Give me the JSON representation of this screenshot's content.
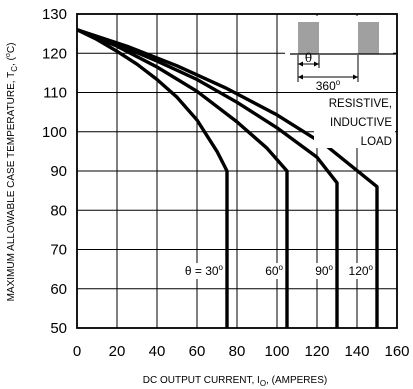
{
  "chart_data": {
    "type": "line",
    "xlabel": "DC OUTPUT CURRENT, I",
    "xlabel_sub": "O",
    "xlabel_tail": ", (AMPERES)",
    "ylabel": "MAXIMUM ALLOWABLE CASE TEMPERATURE, T",
    "ylabel_sub": "C",
    "ylabel_tail": ", (",
    "ylabel_deg": "o",
    "ylabel_end": "C)",
    "xlim": [
      0,
      160
    ],
    "ylim": [
      50,
      130
    ],
    "xticks": [
      "0",
      "20",
      "40",
      "60",
      "80",
      "100",
      "120",
      "140",
      "160"
    ],
    "yticks": [
      "50",
      "60",
      "70",
      "80",
      "90",
      "100",
      "110",
      "120",
      "130"
    ],
    "grid": true,
    "series": [
      {
        "name": "θ = 30",
        "sup": "o",
        "x": [
          0,
          10,
          20,
          30,
          40,
          50,
          60,
          70,
          75,
          75
        ],
        "y": [
          126,
          123.5,
          120.5,
          117.2,
          113.3,
          108.8,
          103.0,
          95.0,
          90,
          50
        ]
      },
      {
        "name": "60",
        "sup": "o",
        "x": [
          0,
          20,
          40,
          60,
          80,
          95,
          105,
          105
        ],
        "y": [
          126,
          121.8,
          116.5,
          110.3,
          102.5,
          95.8,
          90,
          50
        ]
      },
      {
        "name": "90",
        "sup": "o",
        "x": [
          0,
          20,
          40,
          60,
          80,
          100,
          120,
          130,
          130
        ],
        "y": [
          126,
          122.3,
          118.0,
          113.3,
          107.5,
          101.0,
          93.5,
          87,
          50
        ]
      },
      {
        "name": "120",
        "sup": "o",
        "x": [
          0,
          25,
          50,
          75,
          100,
          125,
          150,
          150
        ],
        "y": [
          126,
          121.8,
          116.8,
          111.0,
          104.3,
          96.3,
          86,
          50
        ]
      }
    ],
    "inset": {
      "theta_label": "θ",
      "period_label": "360",
      "period_sup": "o"
    },
    "note_lines": [
      "RESISTIVE,",
      "INDUCTIVE",
      "LOAD"
    ]
  }
}
